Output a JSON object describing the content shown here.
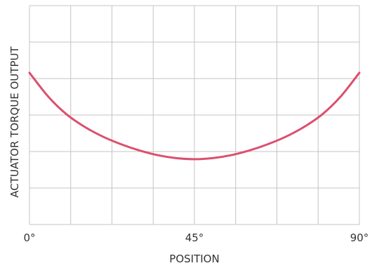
{
  "chart_data": {
    "type": "line",
    "title": "",
    "xlabel": "POSITION",
    "ylabel": "ACTUATOR TORQUE OUTPUT",
    "xlim": [
      0,
      90
    ],
    "ylim": [
      0,
      6
    ],
    "x_ticks": [
      {
        "value": 0,
        "label": "0°"
      },
      {
        "value": 45,
        "label": "45°"
      },
      {
        "value": 90,
        "label": "90°"
      }
    ],
    "grid": true,
    "grid_x_divisions": 8,
    "grid_y_divisions": 6,
    "series": [
      {
        "color": "#dc4f6e",
        "x": [
          0,
          5,
          10,
          15,
          20,
          25,
          30,
          35,
          40,
          45,
          50,
          55,
          60,
          65,
          70,
          75,
          80,
          85,
          90
        ],
        "y": [
          4.16,
          3.52,
          3.03,
          2.68,
          2.41,
          2.2,
          2.03,
          1.9,
          1.82,
          1.79,
          1.82,
          1.9,
          2.03,
          2.2,
          2.41,
          2.68,
          3.03,
          3.52,
          4.16
        ]
      }
    ]
  }
}
